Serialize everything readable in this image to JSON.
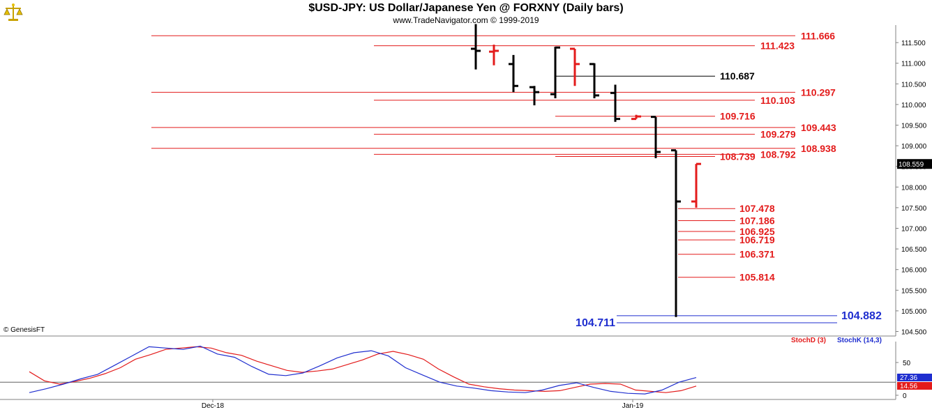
{
  "header": {
    "title": "$USD-JPY:  US Dollar/Japanese Yen @ FORXNY  (Daily bars)",
    "subtitle": "www.TradeNavigator.com © 1999-2019"
  },
  "copyright_label": "© GenesisFT",
  "colors": {
    "up_bar": "#000000",
    "down_bar": "#e31b1b",
    "level_red": "#e31b1b",
    "level_blue": "#1f2ecf",
    "stoch_d": "#e31b1b",
    "stoch_k": "#1f2ecf",
    "axis": "#808080"
  },
  "chart_data": [
    {
      "type": "ohlc",
      "title": "$USD-JPY:  US Dollar/Japanese Yen @ FORXNY  (Daily bars)",
      "ylim": [
        104.5,
        111.95
      ],
      "ytick_labels": [
        "111.500",
        "111.000",
        "110.500",
        "110.000",
        "109.500",
        "109.000",
        "108.500",
        "108.000",
        "107.500",
        "107.000",
        "106.500",
        "106.000",
        "105.500",
        "105.000",
        "104.500"
      ],
      "last_price_label": "108.559",
      "x_labels": [
        "Dec-18",
        "Jan-19"
      ],
      "bars": [
        {
          "date": "2018-12-24",
          "open": 111.35,
          "high": 111.95,
          "low": 110.85,
          "close": 111.3,
          "color": "black"
        },
        {
          "date": "2018-12-25",
          "open": 111.28,
          "high": 111.45,
          "low": 110.95,
          "close": 111.3,
          "color": "red"
        },
        {
          "date": "2018-12-26",
          "open": 110.98,
          "high": 111.2,
          "low": 110.3,
          "close": 110.45,
          "color": "black"
        },
        {
          "date": "2018-12-27",
          "open": 110.42,
          "high": 110.45,
          "low": 109.98,
          "close": 110.3,
          "color": "black"
        },
        {
          "date": "2018-12-28",
          "open": 110.25,
          "high": 111.4,
          "low": 110.15,
          "close": 111.38,
          "color": "black"
        },
        {
          "date": "2018-12-31",
          "open": 111.35,
          "high": 111.35,
          "low": 110.45,
          "close": 110.98,
          "color": "red"
        },
        {
          "date": "2019-01-01",
          "open": 110.98,
          "high": 111.0,
          "low": 110.15,
          "close": 110.22,
          "color": "black"
        },
        {
          "date": "2019-01-02",
          "open": 110.28,
          "high": 110.48,
          "low": 109.58,
          "close": 109.65,
          "color": "black"
        },
        {
          "date": "2019-01-03",
          "open": 109.65,
          "high": 109.75,
          "low": 109.65,
          "close": 109.71,
          "color": "red"
        },
        {
          "date": "2019-01-04",
          "open": 109.7,
          "high": 109.7,
          "low": 108.7,
          "close": 108.85,
          "color": "black"
        },
        {
          "date": "2019-01-07",
          "open": 108.89,
          "high": 108.89,
          "low": 104.85,
          "close": 107.65,
          "color": "black"
        },
        {
          "date": "2019-01-08",
          "open": 107.65,
          "high": 108.56,
          "low": 107.5,
          "close": 108.56,
          "color": "red"
        }
      ],
      "levels": [
        {
          "label": "111.666",
          "value": 111.666,
          "color": "red"
        },
        {
          "label": "111.423",
          "value": 111.423,
          "color": "red"
        },
        {
          "label": "110.687",
          "value": 110.687,
          "color": "black"
        },
        {
          "label": "110.297",
          "value": 110.297,
          "color": "red"
        },
        {
          "label": "110.103",
          "value": 110.103,
          "color": "red"
        },
        {
          "label": "109.716",
          "value": 109.716,
          "color": "red"
        },
        {
          "label": "109.443",
          "value": 109.443,
          "color": "red"
        },
        {
          "label": "109.279",
          "value": 109.279,
          "color": "red"
        },
        {
          "label": "108.938",
          "value": 108.938,
          "color": "red"
        },
        {
          "label": "108.792",
          "value": 108.792,
          "color": "red"
        },
        {
          "label": "108.739",
          "value": 108.739,
          "color": "red"
        },
        {
          "label": "107.478",
          "value": 107.478,
          "color": "red"
        },
        {
          "label": "107.186",
          "value": 107.186,
          "color": "red"
        },
        {
          "label": "106.925",
          "value": 106.925,
          "color": "red"
        },
        {
          "label": "106.719",
          "value": 106.719,
          "color": "red"
        },
        {
          "label": "106.371",
          "value": 106.371,
          "color": "red"
        },
        {
          "label": "105.814",
          "value": 105.814,
          "color": "red"
        },
        {
          "label": "104.882",
          "value": 104.882,
          "color": "blue"
        },
        {
          "label": "104.711",
          "value": 104.711,
          "color": "blue"
        }
      ]
    },
    {
      "type": "line",
      "ylim": [
        0,
        100
      ],
      "ytick_labels": [
        "50",
        "0"
      ],
      "legend": [
        "StochD (3)",
        "StochK (14,3)"
      ],
      "last_values": [
        "27.36",
        "14.56"
      ],
      "series": [
        {
          "name": "StochD (3)",
          "values": [
            36,
            22,
            17,
            21,
            26,
            33,
            42,
            55,
            62,
            70,
            72,
            74,
            72,
            65,
            61,
            52,
            45,
            38,
            35,
            37,
            40,
            47,
            54,
            63,
            67,
            62,
            55,
            40,
            28,
            17,
            13,
            10,
            8,
            7,
            6,
            7,
            12,
            17,
            18,
            17,
            8,
            6,
            4,
            7,
            14
          ]
        },
        {
          "name": "StochK (14,3)",
          "values": [
            4,
            10,
            17,
            25,
            32,
            46,
            60,
            74,
            72,
            70,
            75,
            63,
            58,
            44,
            32,
            30,
            34,
            45,
            57,
            65,
            68,
            60,
            42,
            31,
            20,
            14,
            11,
            7,
            5,
            4,
            8,
            15,
            19,
            12,
            6,
            3,
            2,
            8,
            20,
            27
          ]
        }
      ]
    }
  ]
}
